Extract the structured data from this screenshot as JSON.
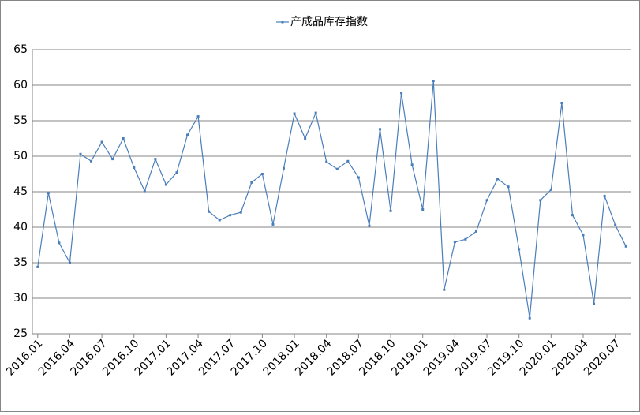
{
  "chart_data": {
    "type": "line",
    "categories": [
      "2016.01",
      null,
      null,
      "2016.04",
      null,
      null,
      "2016.07",
      null,
      null,
      "2016.10",
      null,
      null,
      "2017.01",
      null,
      null,
      "2017.04",
      null,
      null,
      "2017.07",
      null,
      null,
      "2017.10",
      null,
      null,
      "2018.01",
      null,
      null,
      "2018.04",
      null,
      null,
      "2018.07",
      null,
      null,
      "2018.10",
      null,
      null,
      "2019.01",
      null,
      null,
      "2019.04",
      null,
      null,
      "2019.07",
      null,
      null,
      "2019.10",
      null,
      null,
      "2020.01",
      null,
      null,
      "2020.04",
      null,
      null,
      "2020.07",
      null
    ],
    "series": [
      {
        "name": "产成品库存指数",
        "color": "#4a7ebb",
        "values": [
          34.4,
          44.8,
          37.8,
          35.0,
          50.3,
          49.3,
          52.0,
          49.6,
          52.5,
          48.4,
          45.1,
          49.6,
          46.0,
          47.7,
          53.0,
          55.6,
          42.2,
          41.0,
          41.7,
          42.1,
          46.3,
          47.5,
          40.4,
          48.3,
          56.0,
          52.5,
          56.1,
          49.2,
          48.2,
          49.3,
          47.0,
          40.2,
          53.8,
          42.3,
          58.9,
          48.8,
          42.5,
          60.6,
          31.2,
          37.9,
          38.3,
          39.4,
          43.8,
          46.8,
          45.7,
          36.9,
          27.2,
          43.8,
          45.3,
          57.5,
          41.7,
          38.9,
          29.2,
          44.4,
          40.3,
          37.3
        ]
      }
    ],
    "ylim": [
      25,
      65
    ],
    "yticks": [
      25,
      30,
      35,
      40,
      45,
      50,
      55,
      60,
      65
    ],
    "grid": true,
    "legend": "top"
  }
}
